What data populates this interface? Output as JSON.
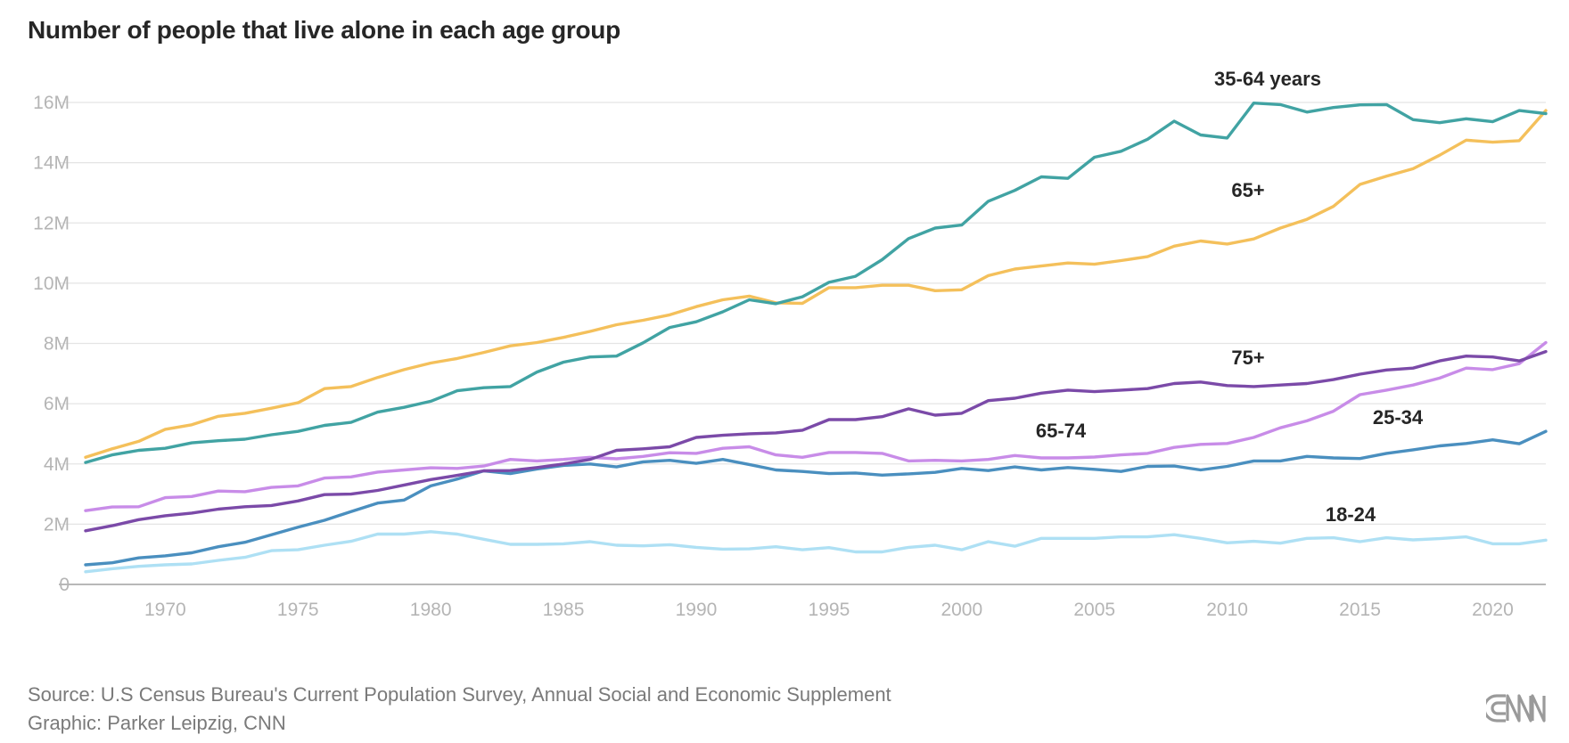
{
  "chart_data": {
    "type": "line",
    "title": "Number of people that live alone in each age group",
    "xlabel": "",
    "ylabel": "",
    "xlim": [
      1967,
      2022
    ],
    "ylim": [
      0,
      16
    ],
    "x_ticks": [
      "1970",
      "1975",
      "1980",
      "1985",
      "1990",
      "1995",
      "2000",
      "2005",
      "2010",
      "2015",
      "2020"
    ],
    "y_ticks": [
      "0",
      "2M",
      "4M",
      "6M",
      "8M",
      "10M",
      "12M",
      "14M",
      "16M"
    ],
    "grid": "horizontal",
    "years": [
      1967,
      1968,
      1969,
      1970,
      1971,
      1972,
      1973,
      1974,
      1975,
      1976,
      1977,
      1978,
      1979,
      1980,
      1981,
      1982,
      1983,
      1984,
      1985,
      1986,
      1987,
      1988,
      1989,
      1990,
      1991,
      1992,
      1993,
      1994,
      1995,
      1996,
      1997,
      1998,
      1999,
      2000,
      2001,
      2002,
      2003,
      2004,
      2005,
      2006,
      2007,
      2008,
      2009,
      2010,
      2011,
      2012,
      2013,
      2014,
      2015,
      2016,
      2017,
      2018,
      2019,
      2020,
      2021,
      2022
    ],
    "series": [
      {
        "name": "35-64 years",
        "color": "#41a3a3",
        "values": [
          4.05,
          4.3,
          4.45,
          4.52,
          4.7,
          4.77,
          4.82,
          4.97,
          5.08,
          5.28,
          5.38,
          5.72,
          5.88,
          6.08,
          6.43,
          6.53,
          6.57,
          7.05,
          7.38,
          7.55,
          7.58,
          8.02,
          8.53,
          8.72,
          9.05,
          9.45,
          9.32,
          9.55,
          10.03,
          10.23,
          10.78,
          11.48,
          11.83,
          11.93,
          12.72,
          13.08,
          13.53,
          13.48,
          14.18,
          14.38,
          14.78,
          15.38,
          14.92,
          14.82,
          15.98,
          15.93,
          15.68,
          15.83,
          15.92,
          15.93,
          15.43,
          15.33,
          15.46,
          15.36,
          15.73,
          15.63
        ]
      },
      {
        "name": "65+",
        "color": "#f4c05b",
        "values": [
          4.22,
          4.5,
          4.75,
          5.15,
          5.3,
          5.58,
          5.68,
          5.85,
          6.03,
          6.5,
          6.57,
          6.87,
          7.13,
          7.35,
          7.5,
          7.7,
          7.92,
          8.03,
          8.2,
          8.4,
          8.62,
          8.77,
          8.95,
          9.22,
          9.45,
          9.57,
          9.35,
          9.33,
          9.85,
          9.85,
          9.93,
          9.93,
          9.75,
          9.78,
          10.25,
          10.47,
          10.57,
          10.67,
          10.63,
          10.75,
          10.88,
          11.23,
          11.4,
          11.3,
          11.47,
          11.83,
          12.12,
          12.55,
          13.28,
          13.55,
          13.8,
          14.25,
          14.75,
          14.68,
          14.73,
          15.73
        ]
      },
      {
        "name": "75+",
        "color": "#7b4aa8",
        "values": [
          1.78,
          1.95,
          2.15,
          2.28,
          2.37,
          2.5,
          2.58,
          2.62,
          2.77,
          2.98,
          3.0,
          3.12,
          3.3,
          3.48,
          3.62,
          3.77,
          3.78,
          3.88,
          4.0,
          4.15,
          4.45,
          4.5,
          4.57,
          4.88,
          4.95,
          5.0,
          5.03,
          5.12,
          5.47,
          5.47,
          5.57,
          5.83,
          5.62,
          5.68,
          6.1,
          6.18,
          6.35,
          6.45,
          6.4,
          6.45,
          6.5,
          6.67,
          6.72,
          6.6,
          6.57,
          6.62,
          6.67,
          6.8,
          6.98,
          7.12,
          7.18,
          7.42,
          7.58,
          7.55,
          7.42,
          7.73
        ]
      },
      {
        "name": "65-74",
        "color": "#c88ce8",
        "values": [
          2.45,
          2.57,
          2.58,
          2.88,
          2.92,
          3.1,
          3.08,
          3.22,
          3.27,
          3.53,
          3.57,
          3.73,
          3.8,
          3.87,
          3.85,
          3.93,
          4.15,
          4.1,
          4.15,
          4.22,
          4.17,
          4.25,
          4.37,
          4.35,
          4.52,
          4.57,
          4.3,
          4.22,
          4.38,
          4.38,
          4.35,
          4.1,
          4.12,
          4.1,
          4.15,
          4.28,
          4.2,
          4.2,
          4.23,
          4.3,
          4.35,
          4.55,
          4.65,
          4.68,
          4.88,
          5.2,
          5.43,
          5.75,
          6.3,
          6.45,
          6.62,
          6.85,
          7.18,
          7.13,
          7.33,
          8.03
        ]
      },
      {
        "name": "25-34",
        "color": "#4a8fbf",
        "values": [
          0.65,
          0.72,
          0.88,
          0.95,
          1.05,
          1.25,
          1.4,
          1.65,
          1.9,
          2.13,
          2.42,
          2.7,
          2.8,
          3.27,
          3.5,
          3.77,
          3.68,
          3.83,
          3.95,
          4.0,
          3.9,
          4.07,
          4.12,
          4.02,
          4.15,
          3.98,
          3.8,
          3.75,
          3.68,
          3.7,
          3.63,
          3.67,
          3.72,
          3.85,
          3.78,
          3.9,
          3.8,
          3.88,
          3.82,
          3.75,
          3.92,
          3.93,
          3.8,
          3.92,
          4.1,
          4.1,
          4.25,
          4.2,
          4.18,
          4.35,
          4.47,
          4.6,
          4.68,
          4.8,
          4.67,
          5.08
        ]
      },
      {
        "name": "18-24",
        "color": "#aee0f4",
        "values": [
          0.42,
          0.52,
          0.6,
          0.65,
          0.68,
          0.8,
          0.9,
          1.12,
          1.15,
          1.3,
          1.43,
          1.67,
          1.67,
          1.75,
          1.67,
          1.5,
          1.33,
          1.33,
          1.35,
          1.42,
          1.3,
          1.28,
          1.32,
          1.23,
          1.17,
          1.18,
          1.25,
          1.15,
          1.22,
          1.08,
          1.08,
          1.23,
          1.3,
          1.15,
          1.42,
          1.27,
          1.53,
          1.53,
          1.53,
          1.58,
          1.58,
          1.65,
          1.53,
          1.38,
          1.43,
          1.37,
          1.53,
          1.55,
          1.42,
          1.55,
          1.48,
          1.52,
          1.58,
          1.35,
          1.35,
          1.47
        ]
      }
    ]
  },
  "footer": {
    "source": "Source: U.S Census Bureau's Current Population Survey, Annual Social and Economic Supplement",
    "graphic": "Graphic: Parker Leipzig, CNN"
  },
  "brand": {
    "logo_text": "CNN",
    "logo_color": "#9a9a9a"
  }
}
